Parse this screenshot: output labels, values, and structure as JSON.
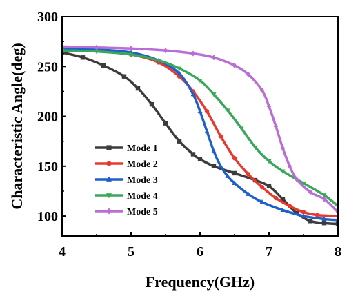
{
  "chart_data": {
    "type": "line",
    "xlabel": "Frequency(GHz)",
    "ylabel": "Characteristic Angle(deg)",
    "xlim": [
      4,
      8
    ],
    "ylim": [
      80,
      300
    ],
    "xticks": [
      4,
      5,
      6,
      7,
      8
    ],
    "yticks": [
      100,
      150,
      200,
      250,
      300
    ],
    "grid": false,
    "legend_position": "bottom-left",
    "series": [
      {
        "name": "Mode 1",
        "color": "#3c3c3c",
        "marker": "square",
        "x": [
          4.0,
          4.3,
          4.6,
          4.9,
          5.1,
          5.3,
          5.5,
          5.7,
          5.9,
          6.0,
          6.2,
          6.5,
          6.8,
          7.0,
          7.2,
          7.4,
          7.6,
          7.8,
          8.0
        ],
        "y": [
          264,
          259,
          251,
          240,
          228,
          212,
          193,
          175,
          162,
          157,
          150,
          143,
          136,
          130,
          117,
          103,
          95,
          93,
          92
        ]
      },
      {
        "name": "Mode 2",
        "color": "#e8392f",
        "marker": "circle",
        "x": [
          4.0,
          4.5,
          5.0,
          5.4,
          5.7,
          5.9,
          6.1,
          6.3,
          6.5,
          6.7,
          6.9,
          7.1,
          7.3,
          7.5,
          7.7,
          8.0
        ],
        "y": [
          268,
          266,
          262,
          254,
          240,
          225,
          205,
          180,
          158,
          142,
          129,
          118,
          110,
          104,
          101,
          100
        ]
      },
      {
        "name": "Mode 3",
        "color": "#1f5fc9",
        "marker": "triangle-up",
        "x": [
          4.0,
          4.5,
          5.0,
          5.4,
          5.7,
          5.9,
          6.0,
          6.1,
          6.2,
          6.3,
          6.4,
          6.5,
          6.7,
          6.9,
          7.2,
          7.5,
          7.8,
          8.0
        ],
        "y": [
          268,
          267,
          264,
          256,
          243,
          222,
          205,
          185,
          165,
          150,
          140,
          133,
          122,
          114,
          106,
          100,
          97,
          96
        ]
      },
      {
        "name": "Mode 4",
        "color": "#3aa85a",
        "marker": "triangle-down",
        "x": [
          4.0,
          4.5,
          5.0,
          5.4,
          5.7,
          6.0,
          6.2,
          6.4,
          6.6,
          6.8,
          7.0,
          7.2,
          7.5,
          7.8,
          8.0
        ],
        "y": [
          266,
          265,
          262,
          256,
          248,
          236,
          222,
          206,
          188,
          169,
          155,
          145,
          133,
          121,
          110
        ]
      },
      {
        "name": "Mode 5",
        "color": "#b96ed6",
        "marker": "diamond",
        "x": [
          4.0,
          4.5,
          5.0,
          5.5,
          5.9,
          6.2,
          6.5,
          6.7,
          6.9,
          7.0,
          7.1,
          7.2,
          7.3,
          7.4,
          7.6,
          7.8,
          8.0
        ],
        "y": [
          270,
          269,
          268,
          266,
          263,
          259,
          251,
          242,
          226,
          210,
          190,
          168,
          150,
          137,
          124,
          117,
          104
        ]
      }
    ]
  }
}
